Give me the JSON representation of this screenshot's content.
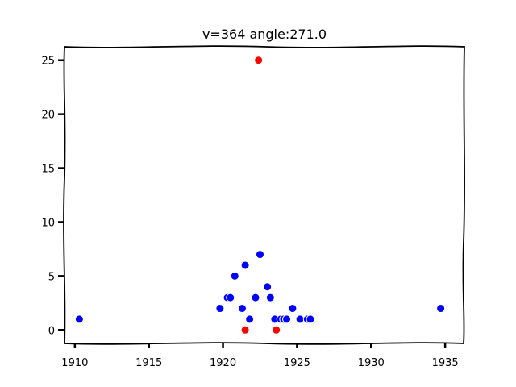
{
  "chart_data": {
    "type": "scatter",
    "title": "v=364 angle:271.0",
    "xlabel": "",
    "ylabel": "",
    "xlim": [
      1909.3,
      1936.3
    ],
    "ylim": [
      -1.25,
      26.25
    ],
    "xticks": [
      1910,
      1915,
      1920,
      1925,
      1930,
      1935
    ],
    "yticks": [
      0,
      5,
      10,
      15,
      20,
      25
    ],
    "grid": false,
    "series": [
      {
        "color": "#0000ff",
        "points": [
          [
            1910.3,
            1
          ],
          [
            1919.8,
            2
          ],
          [
            1920.3,
            3
          ],
          [
            1920.5,
            3
          ],
          [
            1920.8,
            5
          ],
          [
            1921.3,
            2
          ],
          [
            1921.5,
            6
          ],
          [
            1921.8,
            1
          ],
          [
            1922.2,
            3
          ],
          [
            1922.5,
            7
          ],
          [
            1923.0,
            4
          ],
          [
            1923.2,
            3
          ],
          [
            1923.5,
            1
          ],
          [
            1923.9,
            1
          ],
          [
            1924.1,
            1
          ],
          [
            1924.3,
            1
          ],
          [
            1924.7,
            2
          ],
          [
            1925.2,
            1
          ],
          [
            1925.7,
            1
          ],
          [
            1925.9,
            1
          ],
          [
            1934.7,
            2
          ]
        ]
      },
      {
        "color": "#ff0000",
        "points": [
          [
            1922.4,
            25
          ],
          [
            1921.5,
            0
          ],
          [
            1923.6,
            0
          ]
        ]
      }
    ]
  }
}
